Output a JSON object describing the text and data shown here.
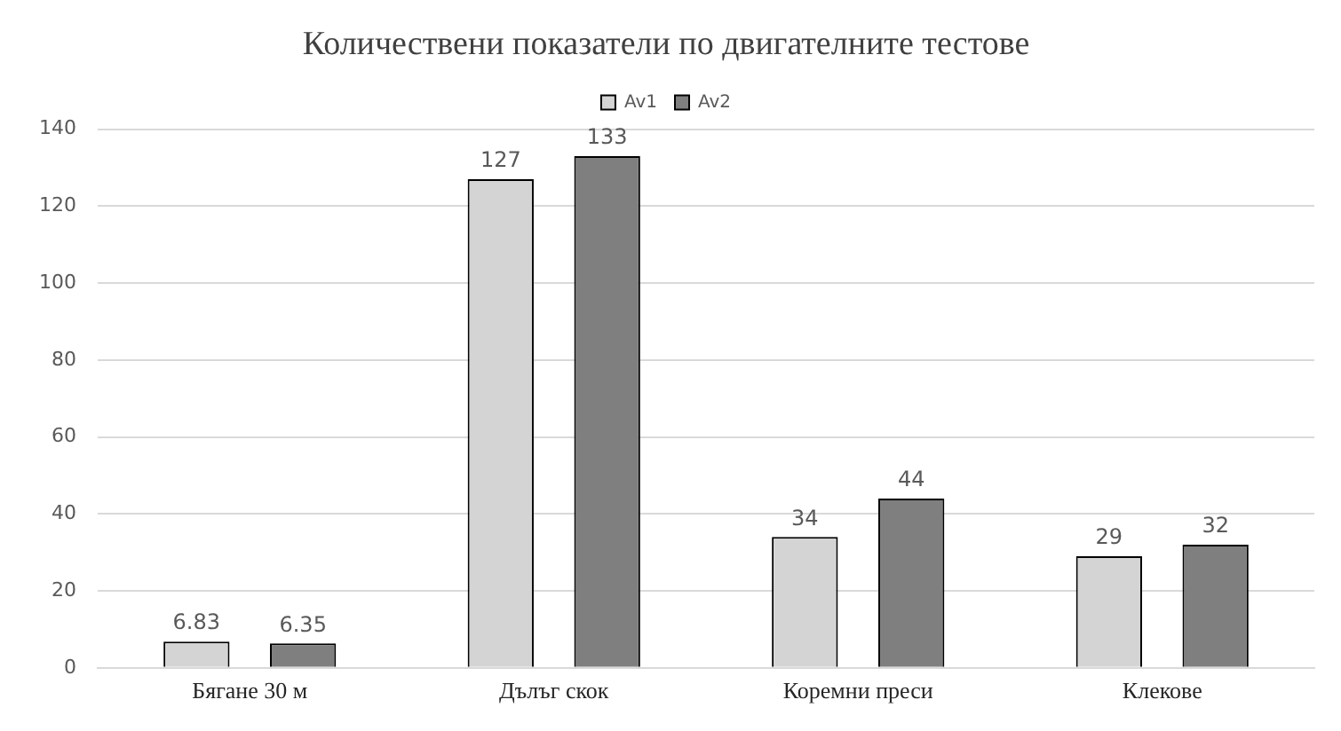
{
  "chart_data": {
    "type": "bar",
    "title": "Количествени показатели по двигателните тестове",
    "categories": [
      "Бягане 30 м",
      "Дълъг скок",
      "Коремни преси",
      "Клекове"
    ],
    "series": [
      {
        "name": "Av1",
        "color": "#d4d4d4",
        "values": [
          6.83,
          127,
          34,
          29
        ]
      },
      {
        "name": "Av2",
        "color": "#7f7f7f",
        "values": [
          6.35,
          133,
          44,
          32
        ]
      }
    ],
    "ylim": [
      0,
      140
    ],
    "yticks": [
      0,
      20,
      40,
      60,
      80,
      100,
      120,
      140
    ],
    "grid": "y",
    "legend": "top",
    "data_labels": true
  }
}
